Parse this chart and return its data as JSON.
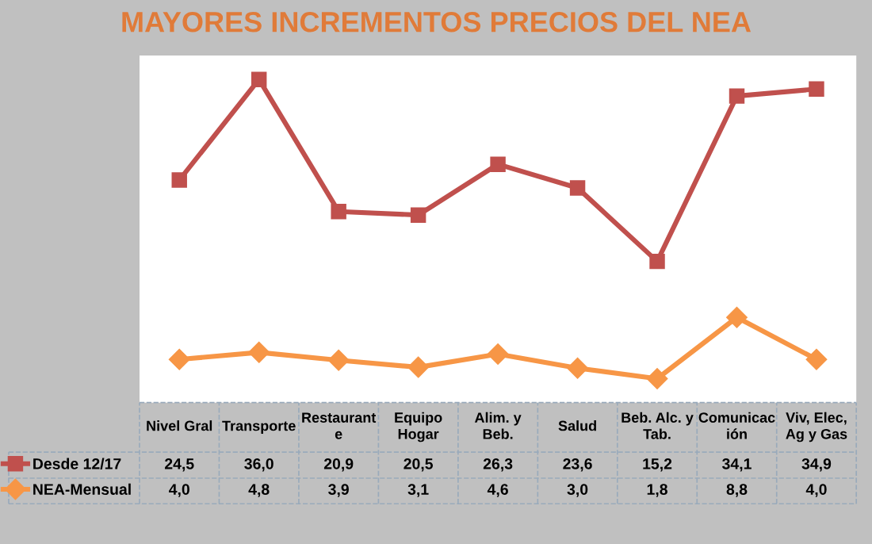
{
  "chart_data": {
    "type": "line",
    "title": "MAYORES INCREMENTOS PRECIOS DEL NEA",
    "categories": [
      "Nivel Gral",
      "Transporte",
      "Restaurant\ne",
      "Equipo\nHogar",
      "Alim. y\nBeb.",
      "Salud",
      "Beb. Alc. y\nTab.",
      "Comunicac\nión",
      "Viv, Elec,\nAg y Gas"
    ],
    "series": [
      {
        "name": "Desde 12/17",
        "color": "#c0504d",
        "marker": "square",
        "values": [
          24.5,
          36.0,
          20.9,
          20.5,
          26.3,
          23.6,
          15.2,
          34.1,
          34.9
        ],
        "value_labels": [
          "24,5",
          "36,0",
          "20,9",
          "20,5",
          "26,3",
          "23,6",
          "15,2",
          "34,1",
          "34,9"
        ]
      },
      {
        "name": "NEA-Mensual",
        "color": "#f79646",
        "marker": "diamond",
        "values": [
          4.0,
          4.8,
          3.9,
          3.1,
          4.6,
          3.0,
          1.8,
          8.8,
          4.0
        ],
        "value_labels": [
          "4,0",
          "4,8",
          "3,9",
          "3,1",
          "4,6",
          "3,0",
          "1,8",
          "8,8",
          "4,0"
        ]
      }
    ],
    "legend": "bottom left"
  }
}
